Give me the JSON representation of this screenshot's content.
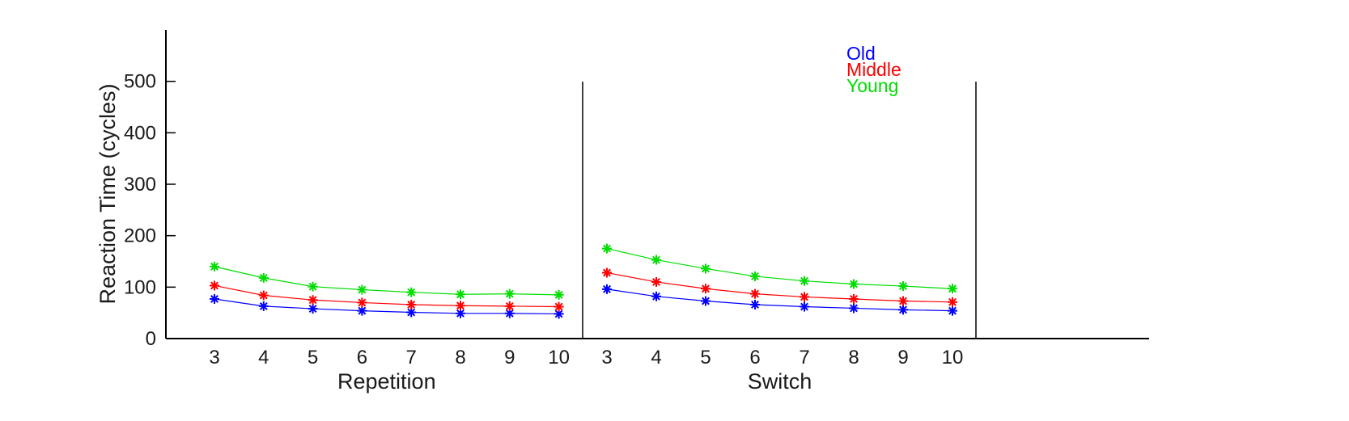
{
  "chart_data": {
    "type": "line",
    "ylabel": "Reaction Time (cycles)",
    "ylim": [
      0,
      600
    ],
    "yticks": [
      0,
      100,
      200,
      300,
      400,
      500
    ],
    "grid": false,
    "legend": {
      "placement": "top-right",
      "entries": [
        {
          "name": "Old",
          "color": "#0000ff"
        },
        {
          "name": "Middle",
          "color": "#ff0000"
        },
        {
          "name": "Young",
          "color": "#00dd00"
        }
      ]
    },
    "panels": [
      {
        "label": "Repetition",
        "x": [
          3,
          4,
          5,
          6,
          7,
          8,
          9,
          10
        ],
        "series": [
          {
            "name": "Old",
            "values": [
              77,
              63,
              58,
              54,
              51,
              49,
              49,
              48
            ]
          },
          {
            "name": "Middle",
            "values": [
              103,
              84,
              75,
              70,
              66,
              64,
              63,
              62
            ]
          },
          {
            "name": "Young",
            "values": [
              140,
              118,
              101,
              95,
              90,
              86,
              87,
              85
            ]
          }
        ]
      },
      {
        "label": "Switch",
        "x": [
          3,
          4,
          5,
          6,
          7,
          8,
          9,
          10
        ],
        "series": [
          {
            "name": "Old",
            "values": [
              96,
              82,
              73,
              66,
              62,
              59,
              56,
              54
            ]
          },
          {
            "name": "Middle",
            "values": [
              128,
              110,
              97,
              87,
              81,
              77,
              73,
              71
            ]
          },
          {
            "name": "Young",
            "values": [
              175,
              153,
              136,
              121,
              112,
              106,
              102,
              97
            ]
          }
        ]
      }
    ]
  }
}
